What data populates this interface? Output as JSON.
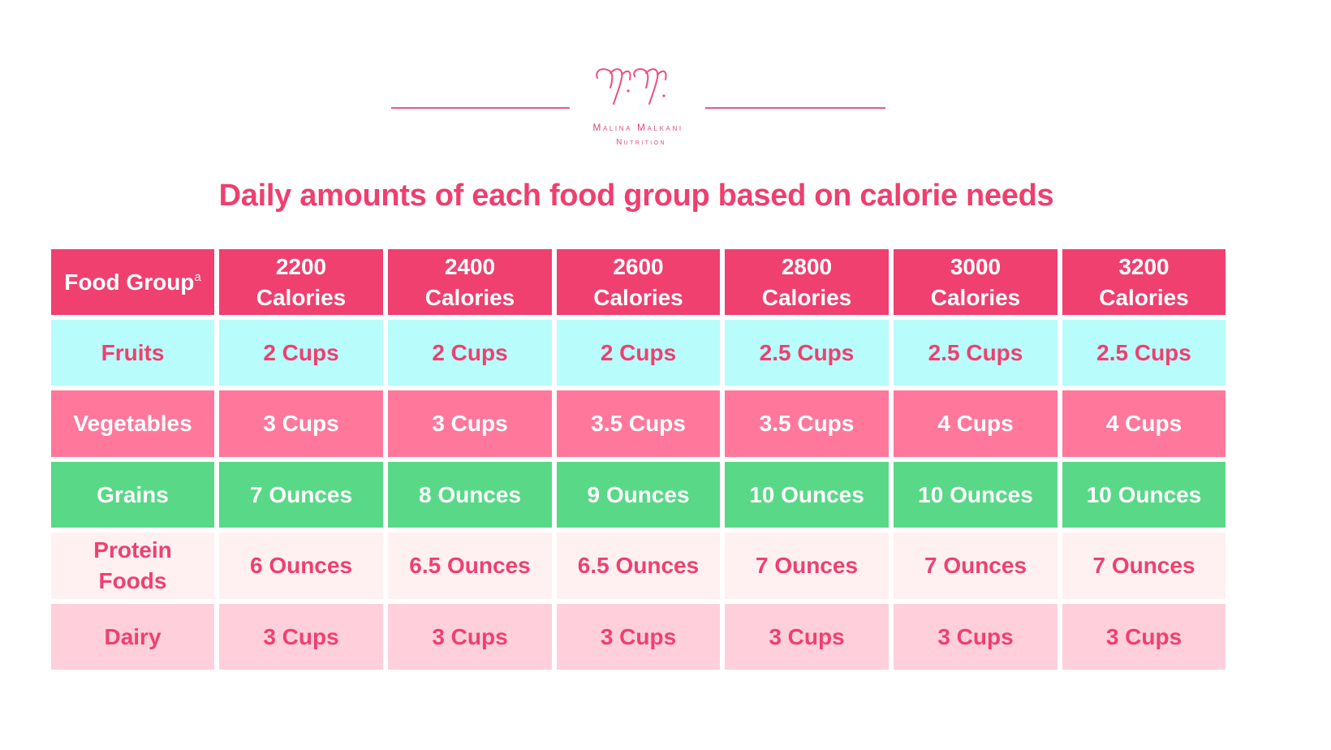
{
  "brand": {
    "monogram": "M.M.",
    "name": "Malina Malkani",
    "subtitle": "Nutrition",
    "accent_color": "#ee3f6e"
  },
  "title": "Daily amounts of each food group based on calorie needs",
  "table": {
    "header": {
      "first_label": "Food Group",
      "first_superscript": "a",
      "columns": [
        {
          "value": "2200",
          "unit": "Calories"
        },
        {
          "value": "2400",
          "unit": "Calories"
        },
        {
          "value": "2600",
          "unit": "Calories"
        },
        {
          "value": "2800",
          "unit": "Calories"
        },
        {
          "value": "3000",
          "unit": "Calories"
        },
        {
          "value": "3200",
          "unit": "Calories"
        }
      ]
    },
    "rows": [
      {
        "group": "Fruits",
        "style": "fruits",
        "color": "#b8fcfb",
        "values": [
          "2 Cups",
          "2 Cups",
          "2 Cups",
          "2.5 Cups",
          "2.5 Cups",
          "2.5 Cups"
        ]
      },
      {
        "group": "Vegetables",
        "style": "veg",
        "color": "#ff789c",
        "values": [
          "3 Cups",
          "3 Cups",
          "3.5 Cups",
          "3.5 Cups",
          "4 Cups",
          "4 Cups"
        ]
      },
      {
        "group": "Grains",
        "style": "grains",
        "color": "#59d887",
        "values": [
          "7 Ounces",
          "8 Ounces",
          "9 Ounces",
          "10 Ounces",
          "10 Ounces",
          "10 Ounces"
        ]
      },
      {
        "group": "Protein Foods",
        "style": "protein",
        "color": "#fff0f2",
        "values": [
          "6 Ounces",
          "6.5 Ounces",
          "6.5 Ounces",
          "7 Ounces",
          "7 Ounces",
          "7 Ounces"
        ]
      },
      {
        "group": "Dairy",
        "style": "dairy",
        "color": "#ffd0dc",
        "values": [
          "3 Cups",
          "3 Cups",
          "3 Cups",
          "3 Cups",
          "3 Cups",
          "3 Cups"
        ]
      }
    ]
  }
}
